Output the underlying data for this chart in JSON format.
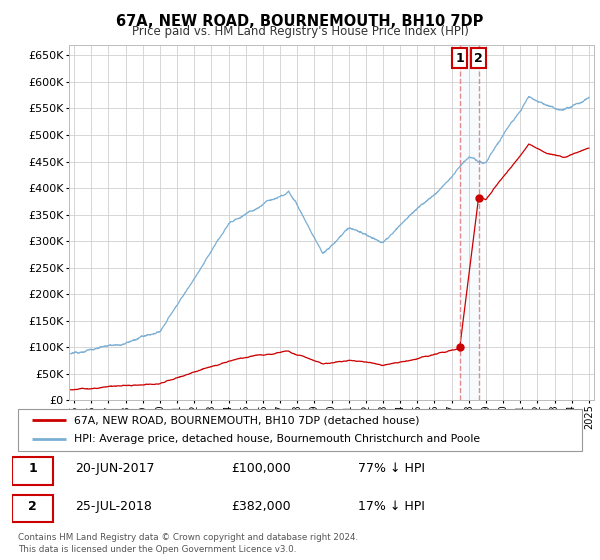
{
  "title": "67A, NEW ROAD, BOURNEMOUTH, BH10 7DP",
  "subtitle": "Price paid vs. HM Land Registry's House Price Index (HPI)",
  "hpi_color": "#7bafd4",
  "price_color": "#cc0000",
  "background_color": "#ffffff",
  "grid_color": "#d0d0d0",
  "ylim": [
    0,
    670000
  ],
  "xlim_start": 1994.7,
  "xlim_end": 2025.3,
  "sale1_x": 2017.47,
  "sale1_y": 100000,
  "sale2_x": 2018.57,
  "sale2_y": 382000,
  "legend_line1": "67A, NEW ROAD, BOURNEMOUTH, BH10 7DP (detached house)",
  "legend_line2": "HPI: Average price, detached house, Bournemouth Christchurch and Poole",
  "table_row1": [
    "1",
    "20-JUN-2017",
    "£100,000",
    "77% ↓ HPI"
  ],
  "table_row2": [
    "2",
    "25-JUL-2018",
    "£382,000",
    "17% ↓ HPI"
  ],
  "footer": "Contains HM Land Registry data © Crown copyright and database right 2024.\nThis data is licensed under the Open Government Licence v3.0."
}
